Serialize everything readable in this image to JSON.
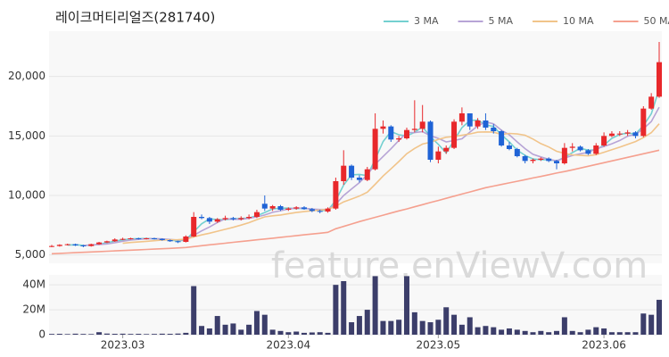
{
  "chart_data": [
    {
      "type": "candlestick",
      "title": "레이크머티리얼즈(281740)",
      "up_color": "#e8282b",
      "down_color": "#1f63d6",
      "ylim": [
        4300,
        23800
      ],
      "yticks": [
        {
          "value": 5000,
          "label": "5,000"
        },
        {
          "value": 10000,
          "label": "10,000"
        },
        {
          "value": 15000,
          "label": "15,000"
        },
        {
          "value": 20000,
          "label": "20,000"
        }
      ],
      "grid": true,
      "legend": "top-right",
      "open": [
        5700,
        5750,
        5850,
        5900,
        5800,
        5750,
        5900,
        6050,
        6150,
        6300,
        6350,
        6400,
        6350,
        6400,
        6350,
        6250,
        6150,
        6100,
        6550,
        8200,
        8100,
        7800,
        8000,
        8100,
        8000,
        8100,
        8200,
        9300,
        8900,
        9100,
        8800,
        8900,
        9000,
        8850,
        8700,
        8650,
        8900,
        11200,
        12500,
        11500,
        11300,
        12200,
        15600,
        15800,
        14700,
        14800,
        15500,
        15600,
        16200,
        13000,
        13700,
        14000,
        16200,
        16900,
        15800,
        16300,
        15700,
        15400,
        14200,
        13900,
        13300,
        12900,
        13000,
        13100,
        12900,
        12700,
        14000,
        14100,
        13800,
        13500,
        14200,
        15000,
        15200,
        15200,
        15300,
        15000,
        17300,
        18300
      ],
      "high": [
        5850,
        5900,
        5950,
        5950,
        5850,
        5950,
        6100,
        6200,
        6400,
        6450,
        6450,
        6450,
        6450,
        6450,
        6400,
        6300,
        6200,
        6650,
        8600,
        8400,
        8200,
        8100,
        8300,
        8200,
        8250,
        8400,
        8800,
        10000,
        9200,
        9200,
        9000,
        9100,
        9100,
        8950,
        8800,
        9000,
        11500,
        13800,
        12600,
        11700,
        12400,
        16900,
        16300,
        15900,
        15000,
        15700,
        18000,
        17600,
        16300,
        14100,
        14200,
        16400,
        17400,
        16900,
        16500,
        16900,
        16000,
        15500,
        14500,
        14000,
        13400,
        13100,
        13200,
        13200,
        13000,
        14400,
        14400,
        14200,
        13900,
        14400,
        15300,
        15400,
        15400,
        15500,
        15400,
        17500,
        18600,
        22900
      ],
      "low": [
        5650,
        5700,
        5800,
        5750,
        5650,
        5700,
        5850,
        6000,
        6100,
        6250,
        6300,
        6300,
        6300,
        6300,
        6200,
        6100,
        6000,
        6050,
        6500,
        8000,
        7600,
        7700,
        7900,
        7900,
        7900,
        8000,
        8100,
        8700,
        8700,
        8700,
        8700,
        8800,
        8800,
        8600,
        8500,
        8550,
        8800,
        10900,
        11300,
        11100,
        11200,
        12100,
        15200,
        14500,
        14500,
        14700,
        15300,
        15300,
        12800,
        12700,
        13500,
        13900,
        15900,
        15500,
        15600,
        15500,
        15200,
        14100,
        13800,
        13200,
        12700,
        12700,
        12900,
        12800,
        12200,
        12600,
        13700,
        13700,
        13400,
        13400,
        14100,
        14900,
        15000,
        15000,
        14800,
        14900,
        17200,
        18200
      ],
      "close": [
        5750,
        5850,
        5900,
        5800,
        5750,
        5900,
        6050,
        6150,
        6300,
        6350,
        6400,
        6350,
        6400,
        6350,
        6250,
        6150,
        6100,
        6550,
        8200,
        8100,
        7800,
        8000,
        8100,
        8000,
        8100,
        8200,
        8600,
        8900,
        9100,
        8800,
        8900,
        9000,
        8850,
        8700,
        8650,
        8900,
        11200,
        12500,
        11500,
        11300,
        12200,
        15600,
        15800,
        14700,
        14800,
        15500,
        15600,
        16200,
        13000,
        13700,
        14000,
        16200,
        16900,
        15800,
        16300,
        15700,
        15400,
        14200,
        13900,
        13300,
        12900,
        13000,
        13100,
        12900,
        12700,
        14000,
        14100,
        13800,
        13500,
        14200,
        15000,
        15200,
        15200,
        15300,
        15000,
        17300,
        18300,
        21200
      ],
      "series": [
        {
          "name": "3 MA",
          "color": "#74d0d0",
          "values": [
            null,
            null,
            5833,
            5850,
            5817,
            5817,
            5900,
            6033,
            6167,
            6267,
            6350,
            6367,
            6383,
            6367,
            6333,
            6250,
            6167,
            6267,
            6950,
            7617,
            8033,
            7967,
            7967,
            8033,
            8067,
            8100,
            8300,
            8567,
            8867,
            8933,
            8933,
            8900,
            8917,
            8850,
            8733,
            8750,
            9583,
            10867,
            11733,
            11767,
            11667,
            13033,
            14533,
            15367,
            15100,
            15000,
            15300,
            15767,
            14933,
            14300,
            13567,
            14633,
            15700,
            16300,
            16333,
            15933,
            15800,
            15100,
            14500,
            13800,
            13367,
            13067,
            13000,
            13000,
            12900,
            13200,
            13600,
            13967,
            13800,
            13833,
            14233,
            14800,
            15133,
            15233,
            15167,
            15867,
            16867,
            18933
          ]
        },
        {
          "name": "5 MA",
          "color": "#b7a4d6",
          "values": [
            null,
            null,
            null,
            null,
            5810,
            5840,
            5880,
            5930,
            6030,
            6150,
            6250,
            6310,
            6360,
            6370,
            6350,
            6300,
            6250,
            6280,
            6650,
            7020,
            7350,
            7730,
            8040,
            8000,
            8000,
            8080,
            8200,
            8360,
            8580,
            8720,
            8860,
            8940,
            8930,
            8850,
            8820,
            8820,
            9260,
            9990,
            10550,
            11080,
            11740,
            12620,
            13280,
            13920,
            14620,
            15280,
            15280,
            15360,
            15020,
            14800,
            14500,
            14620,
            14760,
            15320,
            15840,
            16180,
            16020,
            15480,
            15100,
            14500,
            13940,
            13460,
            13240,
            13040,
            12920,
            13140,
            13360,
            13500,
            13620,
            13920,
            14120,
            14340,
            14620,
            14980,
            15140,
            15600,
            16220,
            17420
          ]
        },
        {
          "name": "10 MA",
          "color": "#f1c48a",
          "values": [
            null,
            null,
            null,
            null,
            null,
            null,
            null,
            null,
            null,
            5980,
            6045,
            6095,
            6145,
            6200,
            6250,
            6275,
            6280,
            6320,
            6510,
            6685,
            6825,
            6990,
            7160,
            7325,
            7510,
            7715,
            7965,
            8200,
            8290,
            8360,
            8470,
            8570,
            8645,
            8715,
            8770,
            8840,
            9100,
            9460,
            9700,
            9950,
            10280,
            10940,
            11635,
            12235,
            12850,
            13510,
            13950,
            14320,
            14470,
            14710,
            14890,
            14950,
            15060,
            15170,
            15320,
            15340,
            15320,
            15120,
            15210,
            15170,
            15060,
            14740,
            14360,
            14070,
            13710,
            13540,
            13410,
            13370,
            13330,
            13420,
            13630,
            13850,
            14060,
            14300,
            14530,
            14860,
            15280,
            16020
          ]
        },
        {
          "name": "50 MA",
          "color": "#f5a08f",
          "values": [
            5100,
            5130,
            5160,
            5190,
            5220,
            5250,
            5280,
            5310,
            5340,
            5370,
            5400,
            5430,
            5460,
            5490,
            5520,
            5550,
            5590,
            5630,
            5700,
            5780,
            5850,
            5920,
            5990,
            6060,
            6130,
            6200,
            6270,
            6340,
            6410,
            6480,
            6550,
            6620,
            6690,
            6760,
            6830,
            6900,
            7200,
            7400,
            7600,
            7800,
            7980,
            8160,
            8340,
            8520,
            8700,
            8870,
            9050,
            9230,
            9410,
            9580,
            9760,
            9940,
            10120,
            10290,
            10470,
            10650,
            10790,
            10920,
            11060,
            11190,
            11330,
            11470,
            11600,
            11740,
            11880,
            12010,
            12150,
            12300,
            12450,
            12600,
            12750,
            12900,
            13050,
            13200,
            13350,
            13500,
            13650,
            13800
          ]
        }
      ],
      "watermark": "feature.enViewV.com"
    },
    {
      "type": "bar",
      "color": "#3c3e6a",
      "ylim": [
        0,
        48000000
      ],
      "yticks": [
        0,
        {
          "value": 20000000,
          "label": "20M"
        },
        {
          "value": 40000000,
          "label": "40M"
        }
      ],
      "categories": [
        null,
        null,
        null,
        null,
        null,
        null,
        null,
        null,
        null,
        "2023.03",
        null,
        null,
        null,
        null,
        null,
        null,
        null,
        null,
        null,
        null,
        null,
        null,
        null,
        null,
        null,
        null,
        null,
        null,
        null,
        null,
        "2023.04",
        null,
        null,
        null,
        null,
        null,
        null,
        null,
        null,
        null,
        null,
        null,
        null,
        null,
        null,
        null,
        null,
        null,
        null,
        "2023.05",
        null,
        null,
        null,
        null,
        null,
        null,
        null,
        null,
        null,
        null,
        null,
        null,
        null,
        null,
        null,
        null,
        null,
        null,
        null,
        null,
        "2023.06",
        null,
        null,
        null,
        null,
        null,
        null,
        null
      ],
      "values": [
        600000,
        700000,
        500000,
        800000,
        600000,
        500000,
        2000000,
        900000,
        700000,
        800000,
        600000,
        700000,
        500000,
        600000,
        800000,
        700000,
        900000,
        1500000,
        39000000,
        7000000,
        5000000,
        15000000,
        8000000,
        9000000,
        4000000,
        8000000,
        19000000,
        16000000,
        4000000,
        3000000,
        2000000,
        2500000,
        1500000,
        1800000,
        2000000,
        1500000,
        40000000,
        43000000,
        10000000,
        15000000,
        20000000,
        47000000,
        11000000,
        11000000,
        12000000,
        47000000,
        18000000,
        11000000,
        10000000,
        12000000,
        22000000,
        16000000,
        8000000,
        14000000,
        6000000,
        7000000,
        6000000,
        4000000,
        5000000,
        4000000,
        3000000,
        2000000,
        3000000,
        2000000,
        3000000,
        14000000,
        3000000,
        2000000,
        4000000,
        6000000,
        5000000,
        2000000,
        2000000,
        2000000,
        2000000,
        17000000,
        16000000,
        28000000
      ]
    }
  ]
}
